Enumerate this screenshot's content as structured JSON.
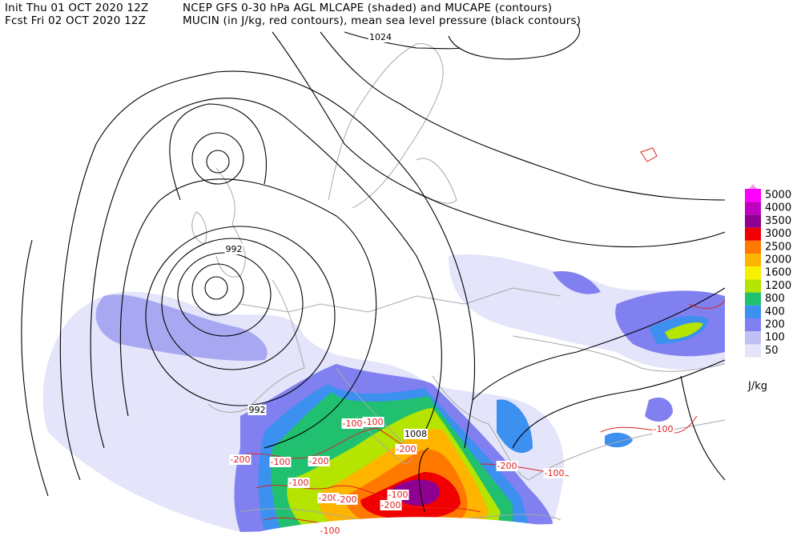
{
  "header": {
    "init": "Init  Thu 01 OCT 2020 12Z",
    "model_title": "NCEP GFS 0-30 hPa AGL MLCAPE (shaded) and MUCAPE (contours)",
    "fcst": "Fcst Fri 02 OCT 2020 12Z",
    "field_title": "MUCIN (in J/kg, red contours), mean sea level pressure (black contours)"
  },
  "legend": {
    "items": [
      {
        "label": "5000",
        "color": "#ff00ff"
      },
      {
        "label": "4000",
        "color": "#c000c0"
      },
      {
        "label": "3500",
        "color": "#900090"
      },
      {
        "label": "3000",
        "color": "#f00000"
      },
      {
        "label": "2500",
        "color": "#ff7800"
      },
      {
        "label": "2000",
        "color": "#ffb400"
      },
      {
        "label": "1600",
        "color": "#f8f000"
      },
      {
        "label": "1200",
        "color": "#b4e400"
      },
      {
        "label": "800",
        "color": "#20c070"
      },
      {
        "label": "400",
        "color": "#3c90f0"
      },
      {
        "label": "200",
        "color": "#8080f0"
      },
      {
        "label": "100",
        "color": "#c0c0f4"
      },
      {
        "label": "50",
        "color": "#e4e4fa"
      }
    ],
    "top_color": "#e8a0f0",
    "unit": "J/kg"
  },
  "contour_labels": {
    "pressure": [
      "1024",
      "992",
      "992",
      "1008"
    ],
    "mucin": [
      "-100",
      "-100",
      "-200",
      "-200",
      "-100",
      "-200",
      "-100",
      "-200",
      "-200",
      "-100",
      "-200",
      "-200",
      "-100",
      "-100",
      "-100"
    ]
  }
}
